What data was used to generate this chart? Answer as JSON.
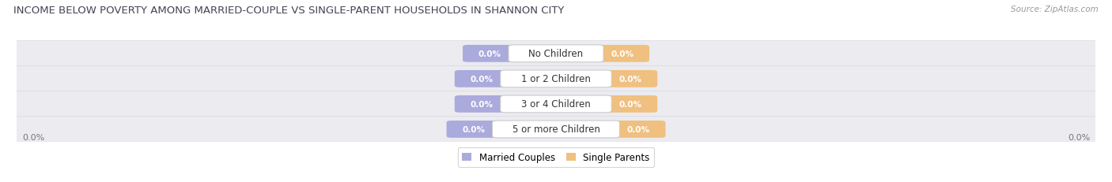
{
  "title": "INCOME BELOW POVERTY AMONG MARRIED-COUPLE VS SINGLE-PARENT HOUSEHOLDS IN SHANNON CITY",
  "source": "Source: ZipAtlas.com",
  "categories": [
    "No Children",
    "1 or 2 Children",
    "3 or 4 Children",
    "5 or more Children"
  ],
  "married_values": [
    0.0,
    0.0,
    0.0,
    0.0
  ],
  "single_values": [
    0.0,
    0.0,
    0.0,
    0.0
  ],
  "married_color": "#aaaadd",
  "single_color": "#f0c080",
  "married_label": "Married Couples",
  "single_label": "Single Parents",
  "bg_color": "#ffffff",
  "row_bg_color": "#ebebf0",
  "row_bg_edge": "#d8d8e0",
  "title_color": "#444455",
  "value_label_color": "#ffffff",
  "cat_label_color": "#333333",
  "axis_label": "0.0%",
  "title_fontsize": 9.5,
  "legend_fontsize": 8.5,
  "value_fontsize": 7.5,
  "cat_fontsize": 8.5,
  "source_fontsize": 7.5
}
